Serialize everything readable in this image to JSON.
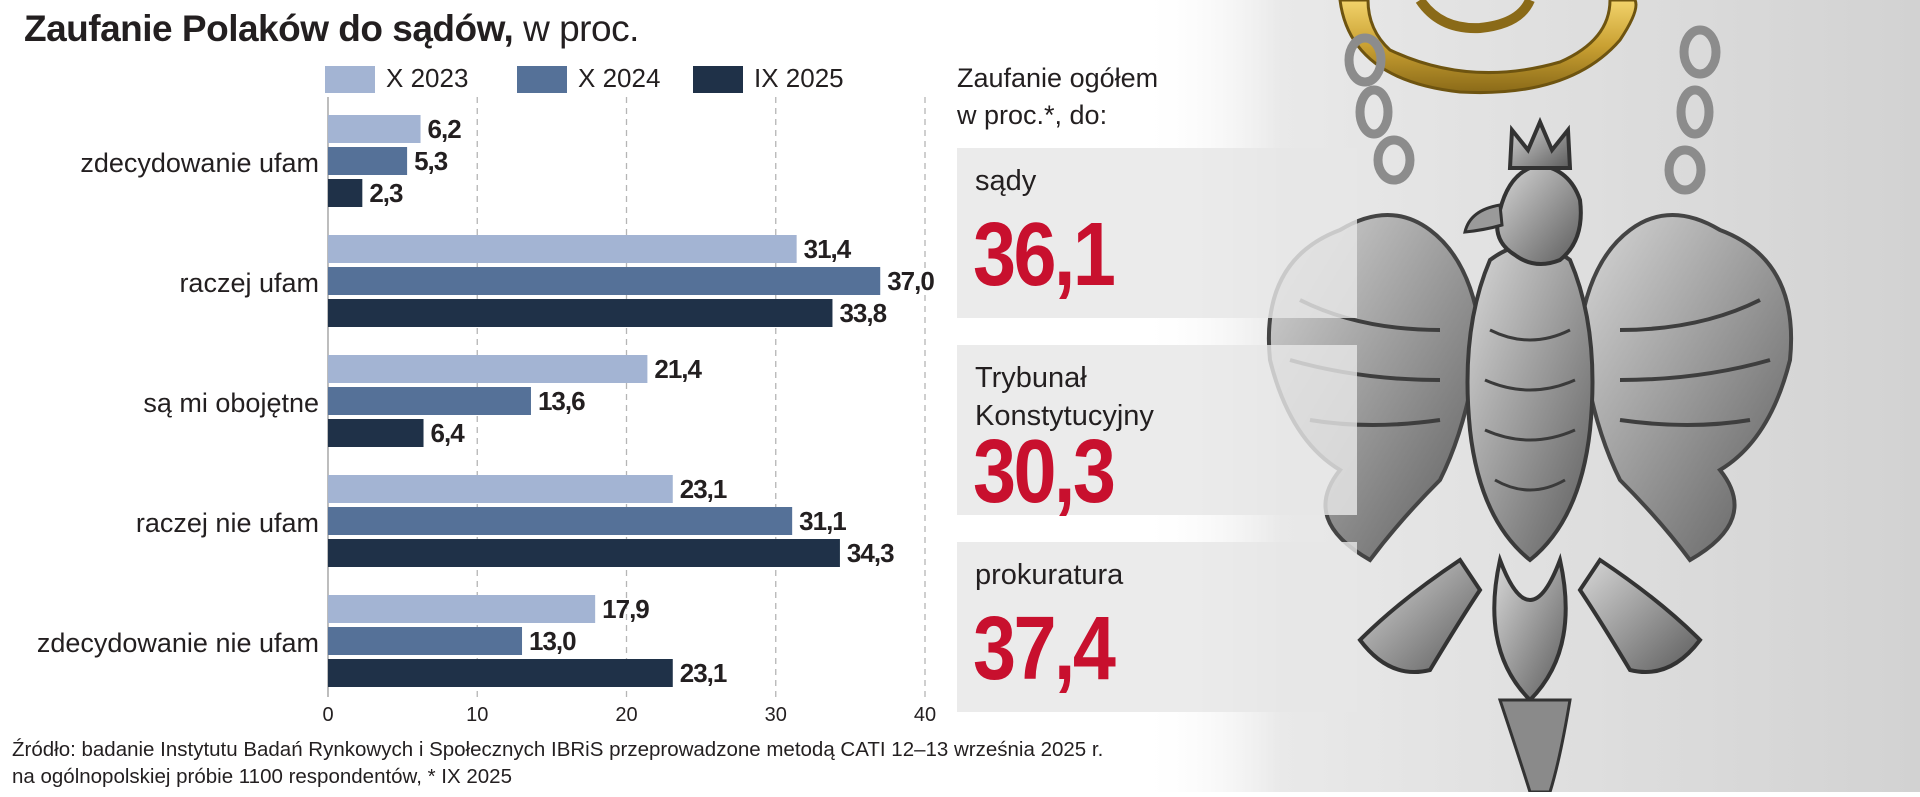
{
  "title": {
    "bold": "Zaufanie Polaków do sądów,",
    "light": "w proc."
  },
  "chart_data": {
    "type": "bar",
    "orientation": "horizontal",
    "title": "Zaufanie Polaków do sądów, w proc.",
    "categories": [
      "zdecydowanie ufam",
      "raczej ufam",
      "są mi obojętne",
      "raczej nie ufam",
      "zdecydowanie nie ufam"
    ],
    "series": [
      {
        "name": "X 2023",
        "color": "#a3b4d3",
        "values": [
          6.2,
          31.4,
          21.4,
          23.1,
          17.9
        ],
        "labels": [
          "6,2",
          "31,4",
          "21,4",
          "23,1",
          "17,9"
        ]
      },
      {
        "name": "X 2024",
        "color": "#557198",
        "values": [
          5.3,
          37.0,
          13.6,
          31.1,
          13.0
        ],
        "labels": [
          "5,3",
          "37,0",
          "13,6",
          "31,1",
          "13,0"
        ]
      },
      {
        "name": "IX 2025",
        "color": "#1f3148",
        "values": [
          2.3,
          33.8,
          6.4,
          34.3,
          23.1
        ],
        "labels": [
          "2,3",
          "33,8",
          "6,4",
          "34,3",
          "23,1"
        ]
      }
    ],
    "xlim": [
      0,
      40
    ],
    "xticks": [
      0,
      10,
      20,
      30,
      40
    ],
    "grid": "vertical dashed",
    "legend_position": "top"
  },
  "panel": {
    "heading_line1": "Zaufanie ogółem",
    "heading_line2": "w proc.*, do:",
    "items": [
      {
        "label_line1": "sądy",
        "label_line2": "",
        "value": "36,1"
      },
      {
        "label_line1": "Trybunał",
        "label_line2": "Konstytucyjny",
        "value": "30,3"
      },
      {
        "label_line1": "prokuratura",
        "label_line2": "",
        "value": "37,4"
      }
    ]
  },
  "source": {
    "line1": "Źródło: badanie Instytutu Badań Rynkowych i Społecznych IBRiS przeprowadzone metodą CATI 12–13 września 2025 r.",
    "line2": "na ogólnopolskiej próbie 1100 respondentów, * IX 2025"
  },
  "colors": {
    "accent_red": "#c8102e",
    "panel_bg": "#e6e6e6",
    "text": "#231f20"
  },
  "photo": {
    "subject": "eagle-emblem-icon"
  }
}
